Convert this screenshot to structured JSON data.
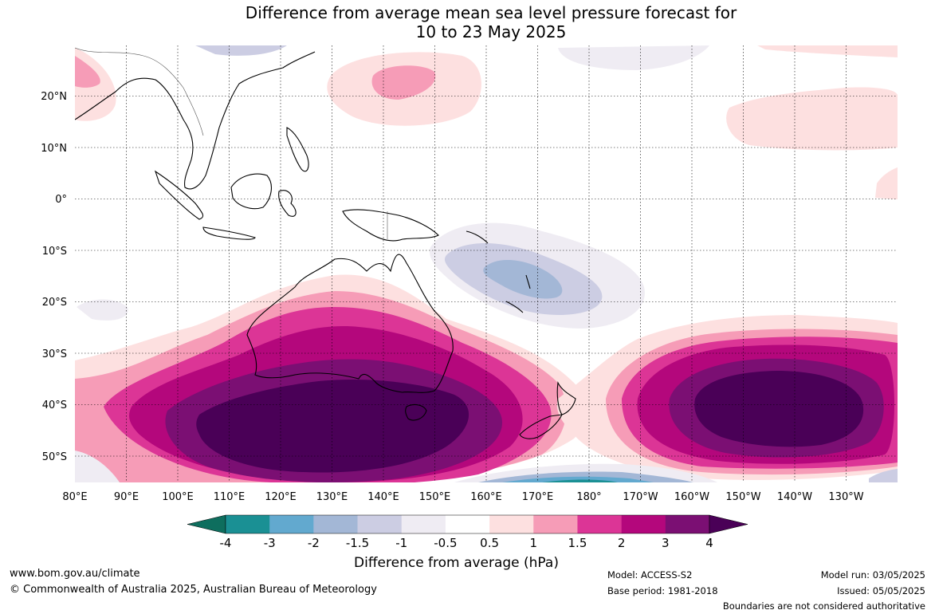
{
  "title": {
    "line1": "Difference from average mean sea level pressure forecast for",
    "line2": "10 to 23 May 2025"
  },
  "map": {
    "lon_labels": [
      "80°E",
      "90°E",
      "100°E",
      "110°E",
      "120°E",
      "130°E",
      "140°E",
      "150°E",
      "160°E",
      "170°E",
      "180°",
      "170°W",
      "160°W",
      "150°W",
      "140°W",
      "130°W"
    ],
    "lat_labels": [
      "20°N",
      "10°N",
      "0°",
      "10°S",
      "20°S",
      "30°S",
      "40°S",
      "50°S"
    ],
    "extent": {
      "lon_min": 80,
      "lon_max": 240,
      "lat_min": -55,
      "lat_max": 30
    },
    "gridlines": true
  },
  "colorbar": {
    "ticks": [
      "-4",
      "-3",
      "-2",
      "-1.5",
      "-1",
      "-0.5",
      "0.5",
      "1",
      "1.5",
      "2",
      "3",
      "4"
    ],
    "colors": [
      "#0e6e5e",
      "#1a9094",
      "#62a9cf",
      "#a3b7d6",
      "#cccde3",
      "#efecf3",
      "#ffffff",
      "#fde0e0",
      "#f69cb7",
      "#dc3596",
      "#b4077c",
      "#7b0f73",
      "#4a0057"
    ],
    "label": "Difference from average (hPa)"
  },
  "footer": {
    "website": "www.bom.gov.au/climate",
    "copyright": "© Commonwealth of Australia 2025, Australian Bureau of Meteorology",
    "model": "Model: ACCESS-S2",
    "base_period": "Base period: 1981-2018",
    "model_run": "Model run: 03/05/2025",
    "issued": "Issued: 05/05/2025",
    "disclaimer": "Boundaries are not considered authoritative"
  }
}
